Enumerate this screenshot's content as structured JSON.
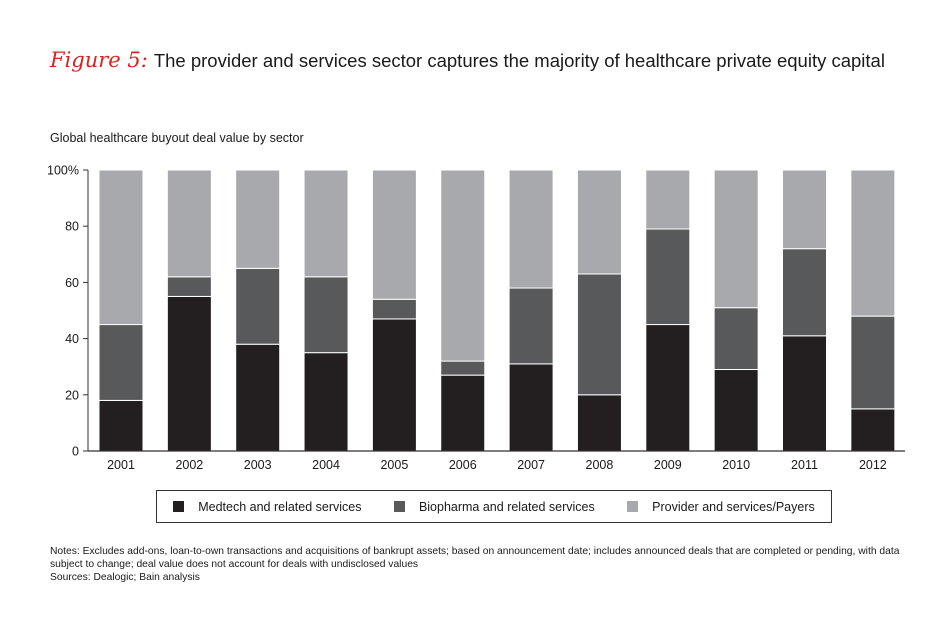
{
  "figure": {
    "label": "Figure 5:",
    "title": "The provider and services sector captures the majority of healthcare private equity capital",
    "subtitle": "Global healthcare buyout deal value by sector"
  },
  "colors": {
    "medtech": "#231f20",
    "biopharma": "#58595b",
    "provider": "#a7a9ac",
    "accent": "#d9231f"
  },
  "chart_data": {
    "type": "bar",
    "stacked": true,
    "categories": [
      "2001",
      "2002",
      "2003",
      "2004",
      "2005",
      "2006",
      "2007",
      "2008",
      "2009",
      "2010",
      "2011",
      "2012"
    ],
    "series": [
      {
        "name": "Medtech and related services",
        "values": [
          18,
          55,
          38,
          35,
          47,
          27,
          31,
          20,
          45,
          29,
          41,
          15
        ]
      },
      {
        "name": "Biopharma and related services",
        "values": [
          27,
          7,
          27,
          27,
          7,
          5,
          27,
          43,
          34,
          22,
          31,
          33
        ]
      },
      {
        "name": "Provider and services/Payers",
        "values": [
          55,
          38,
          35,
          38,
          46,
          68,
          42,
          37,
          21,
          49,
          28,
          52
        ]
      }
    ],
    "yticks": [
      "0",
      "20",
      "40",
      "60",
      "80",
      "100%"
    ],
    "ylim": [
      0,
      100
    ],
    "xlabel": "",
    "ylabel": "",
    "legend_position": "bottom"
  },
  "legend": {
    "items": [
      "Medtech and related services",
      "Biopharma and related services",
      "Provider and services/Payers"
    ]
  },
  "notes": {
    "text": "Notes: Excludes add-ons, loan-to-own transactions and acquisitions of bankrupt assets; based on announcement date; includes announced deals that are completed or pending, with data subject to change; deal value does not account for deals with undisclosed values",
    "sources": "Sources: Dealogic; Bain analysis"
  }
}
